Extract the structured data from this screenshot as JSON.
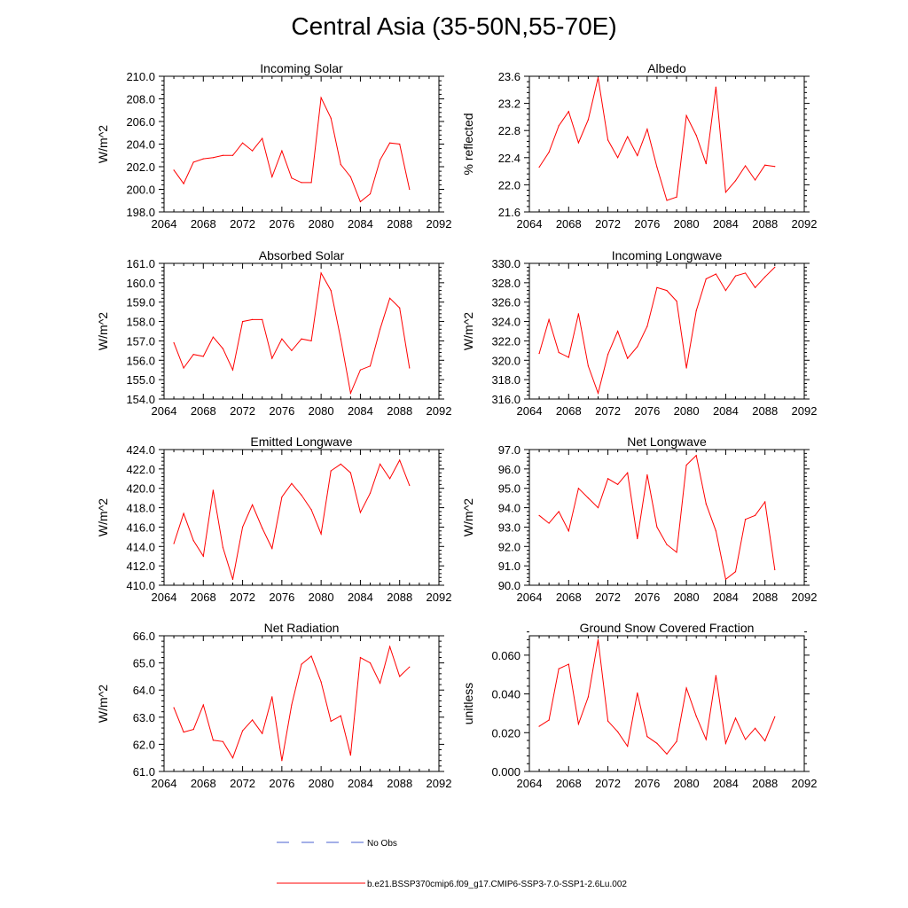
{
  "title": "Central Asia (35-50N,55-70E)",
  "legend": {
    "items": [
      {
        "label": "No Obs",
        "color": "#4a5fd0",
        "style": "dashed"
      },
      {
        "label": "b.e21.BSSP370cmip6.f09_g17.CMIP6-SSP3-7.0-SSP1-2.6Lu.002",
        "color": "#ff0000",
        "style": "solid"
      }
    ]
  },
  "chart_data": [
    {
      "type": "line",
      "title": "Incoming Solar",
      "xlabel": "",
      "ylabel": "W/m^2",
      "xlim": [
        2064,
        2092
      ],
      "ylim": [
        198.0,
        210.0
      ],
      "xticks": [
        "2064",
        "2068",
        "2072",
        "2076",
        "2080",
        "2084",
        "2088",
        "2092"
      ],
      "yticks": [
        "198.0",
        "200.0",
        "202.0",
        "204.0",
        "206.0",
        "208.0",
        "210.0"
      ],
      "x": [
        2065,
        2066,
        2067,
        2068,
        2069,
        2070,
        2071,
        2072,
        2073,
        2074,
        2075,
        2076,
        2077,
        2078,
        2079,
        2080,
        2081,
        2082,
        2083,
        2084,
        2085,
        2086,
        2087,
        2088,
        2089
      ],
      "series": [
        {
          "color": "#ff0000",
          "values": [
            201.7,
            200.5,
            202.4,
            202.7,
            202.8,
            203.0,
            203.0,
            204.1,
            203.4,
            204.5,
            201.1,
            203.4,
            201.0,
            200.6,
            200.6,
            208.1,
            206.3,
            202.2,
            201.1,
            198.9,
            199.6,
            202.6,
            204.1,
            204.0,
            200.0
          ]
        }
      ]
    },
    {
      "type": "line",
      "title": "Albedo",
      "xlabel": "",
      "ylabel": "% reflected",
      "xlim": [
        2064,
        2092
      ],
      "ylim": [
        21.6,
        23.6
      ],
      "xticks": [
        "2064",
        "2068",
        "2072",
        "2076",
        "2080",
        "2084",
        "2088",
        "2092"
      ],
      "yticks": [
        "21.6",
        "22.0",
        "22.4",
        "22.8",
        "23.2",
        "23.6"
      ],
      "x": [
        2065,
        2066,
        2067,
        2068,
        2069,
        2070,
        2071,
        2072,
        2073,
        2074,
        2075,
        2076,
        2077,
        2078,
        2079,
        2080,
        2081,
        2082,
        2083,
        2084,
        2085,
        2086,
        2087,
        2088,
        2089
      ],
      "series": [
        {
          "color": "#ff0000",
          "values": [
            22.26,
            22.48,
            22.87,
            23.08,
            22.62,
            22.96,
            23.58,
            22.66,
            22.4,
            22.71,
            22.43,
            22.82,
            22.26,
            21.77,
            21.82,
            23.02,
            22.73,
            22.31,
            23.44,
            21.89,
            22.06,
            22.28,
            22.07,
            22.29,
            22.27
          ]
        }
      ]
    },
    {
      "type": "line",
      "title": "Absorbed Solar",
      "xlabel": "",
      "ylabel": "W/m^2",
      "xlim": [
        2064,
        2092
      ],
      "ylim": [
        154.0,
        161.0
      ],
      "xticks": [
        "2064",
        "2068",
        "2072",
        "2076",
        "2080",
        "2084",
        "2088",
        "2092"
      ],
      "yticks": [
        "154.0",
        "155.0",
        "156.0",
        "157.0",
        "158.0",
        "159.0",
        "160.0",
        "161.0"
      ],
      "x": [
        2065,
        2066,
        2067,
        2068,
        2069,
        2070,
        2071,
        2072,
        2073,
        2074,
        2075,
        2076,
        2077,
        2078,
        2079,
        2080,
        2081,
        2082,
        2083,
        2084,
        2085,
        2086,
        2087,
        2088,
        2089
      ],
      "series": [
        {
          "color": "#ff0000",
          "values": [
            156.9,
            155.6,
            156.3,
            156.2,
            157.2,
            156.6,
            155.5,
            158.0,
            158.1,
            158.1,
            156.1,
            157.1,
            156.5,
            157.1,
            157.0,
            160.5,
            159.6,
            157.1,
            154.3,
            155.5,
            155.7,
            157.6,
            159.2,
            158.7,
            155.6
          ]
        }
      ]
    },
    {
      "type": "line",
      "title": "Incoming Longwave",
      "xlabel": "",
      "ylabel": "W/m^2",
      "xlim": [
        2064,
        2092
      ],
      "ylim": [
        316.0,
        330.0
      ],
      "xticks": [
        "2064",
        "2068",
        "2072",
        "2076",
        "2080",
        "2084",
        "2088",
        "2092"
      ],
      "yticks": [
        "316.0",
        "318.0",
        "320.0",
        "322.0",
        "324.0",
        "326.0",
        "328.0",
        "330.0"
      ],
      "x": [
        2065,
        2066,
        2067,
        2068,
        2069,
        2070,
        2071,
        2072,
        2073,
        2074,
        2075,
        2076,
        2077,
        2078,
        2079,
        2080,
        2081,
        2082,
        2083,
        2084,
        2085,
        2086,
        2087,
        2088,
        2089
      ],
      "series": [
        {
          "color": "#ff0000",
          "values": [
            320.7,
            324.2,
            320.8,
            320.3,
            324.8,
            319.4,
            316.6,
            320.6,
            323.0,
            320.2,
            321.4,
            323.5,
            327.5,
            327.2,
            326.1,
            319.2,
            325.1,
            328.4,
            328.9,
            327.2,
            328.7,
            329.0,
            327.5,
            328.6,
            329.6
          ]
        }
      ]
    },
    {
      "type": "line",
      "title": "Emitted Longwave",
      "xlabel": "",
      "ylabel": "W/m^2",
      "xlim": [
        2064,
        2092
      ],
      "ylim": [
        410.0,
        424.0
      ],
      "xticks": [
        "2064",
        "2068",
        "2072",
        "2076",
        "2080",
        "2084",
        "2088",
        "2092"
      ],
      "yticks": [
        "410.0",
        "412.0",
        "414.0",
        "416.0",
        "418.0",
        "420.0",
        "422.0",
        "424.0"
      ],
      "x": [
        2065,
        2066,
        2067,
        2068,
        2069,
        2070,
        2071,
        2072,
        2073,
        2074,
        2075,
        2076,
        2077,
        2078,
        2079,
        2080,
        2081,
        2082,
        2083,
        2084,
        2085,
        2086,
        2087,
        2088,
        2089
      ],
      "series": [
        {
          "color": "#ff0000",
          "values": [
            414.3,
            417.4,
            414.6,
            413.0,
            419.8,
            413.9,
            410.6,
            416.0,
            418.3,
            415.9,
            413.8,
            419.1,
            420.5,
            419.3,
            417.8,
            415.3,
            421.8,
            422.5,
            421.6,
            417.5,
            419.5,
            422.5,
            421.0,
            422.9,
            420.3
          ]
        }
      ]
    },
    {
      "type": "line",
      "title": "Net Longwave",
      "xlabel": "",
      "ylabel": "W/m^2",
      "xlim": [
        2064,
        2092
      ],
      "ylim": [
        90.0,
        97.0
      ],
      "xticks": [
        "2064",
        "2068",
        "2072",
        "2076",
        "2080",
        "2084",
        "2088",
        "2092"
      ],
      "yticks": [
        "90.0",
        "91.0",
        "92.0",
        "93.0",
        "94.0",
        "95.0",
        "96.0",
        "97.0"
      ],
      "x": [
        2065,
        2066,
        2067,
        2068,
        2069,
        2070,
        2071,
        2072,
        2073,
        2074,
        2075,
        2076,
        2077,
        2078,
        2079,
        2080,
        2081,
        2082,
        2083,
        2084,
        2085,
        2086,
        2087,
        2088,
        2089
      ],
      "series": [
        {
          "color": "#ff0000",
          "values": [
            93.6,
            93.2,
            93.8,
            92.8,
            95.0,
            94.5,
            94.0,
            95.5,
            95.2,
            95.8,
            92.4,
            95.7,
            93.0,
            92.1,
            91.7,
            96.2,
            96.7,
            94.2,
            92.8,
            90.3,
            90.7,
            93.4,
            93.6,
            94.3,
            90.8
          ]
        }
      ]
    },
    {
      "type": "line",
      "title": "Net Radiation",
      "xlabel": "",
      "ylabel": "W/m^2",
      "xlim": [
        2064,
        2092
      ],
      "ylim": [
        61.0,
        66.0
      ],
      "xticks": [
        "2064",
        "2068",
        "2072",
        "2076",
        "2080",
        "2084",
        "2088",
        "2092"
      ],
      "yticks": [
        "61.0",
        "62.0",
        "63.0",
        "64.0",
        "65.0",
        "66.0"
      ],
      "x": [
        2065,
        2066,
        2067,
        2068,
        2069,
        2070,
        2071,
        2072,
        2073,
        2074,
        2075,
        2076,
        2077,
        2078,
        2079,
        2080,
        2081,
        2082,
        2083,
        2084,
        2085,
        2086,
        2087,
        2088,
        2089
      ],
      "series": [
        {
          "color": "#ff0000",
          "values": [
            63.35,
            62.45,
            62.55,
            63.45,
            62.15,
            62.1,
            61.5,
            62.5,
            62.9,
            62.4,
            63.75,
            61.4,
            63.45,
            64.95,
            65.25,
            64.3,
            62.85,
            63.05,
            61.6,
            65.2,
            65.0,
            64.25,
            65.6,
            64.5,
            64.85
          ]
        }
      ]
    },
    {
      "type": "line",
      "title": "Ground Snow Covered Fraction",
      "xlabel": "",
      "ylabel": "unitless",
      "xlim": [
        2064,
        2092
      ],
      "ylim": [
        0.0,
        0.07
      ],
      "xticks": [
        "2064",
        "2068",
        "2072",
        "2076",
        "2080",
        "2084",
        "2088",
        "2092"
      ],
      "yticks": [
        "0.000",
        "0.020",
        "0.040",
        "0.060"
      ],
      "x": [
        2065,
        2066,
        2067,
        2068,
        2069,
        2070,
        2071,
        2072,
        2073,
        2074,
        2075,
        2076,
        2077,
        2078,
        2079,
        2080,
        2081,
        2082,
        2083,
        2084,
        2085,
        2086,
        2087,
        2088,
        2089
      ],
      "series": [
        {
          "color": "#ff0000",
          "values": [
            0.0233,
            0.0265,
            0.053,
            0.0553,
            0.0245,
            0.0385,
            0.068,
            0.026,
            0.0205,
            0.013,
            0.0405,
            0.018,
            0.0145,
            0.009,
            0.0155,
            0.043,
            0.0285,
            0.0165,
            0.0495,
            0.0145,
            0.0275,
            0.0165,
            0.0223,
            0.0158,
            0.0282
          ]
        }
      ]
    }
  ]
}
